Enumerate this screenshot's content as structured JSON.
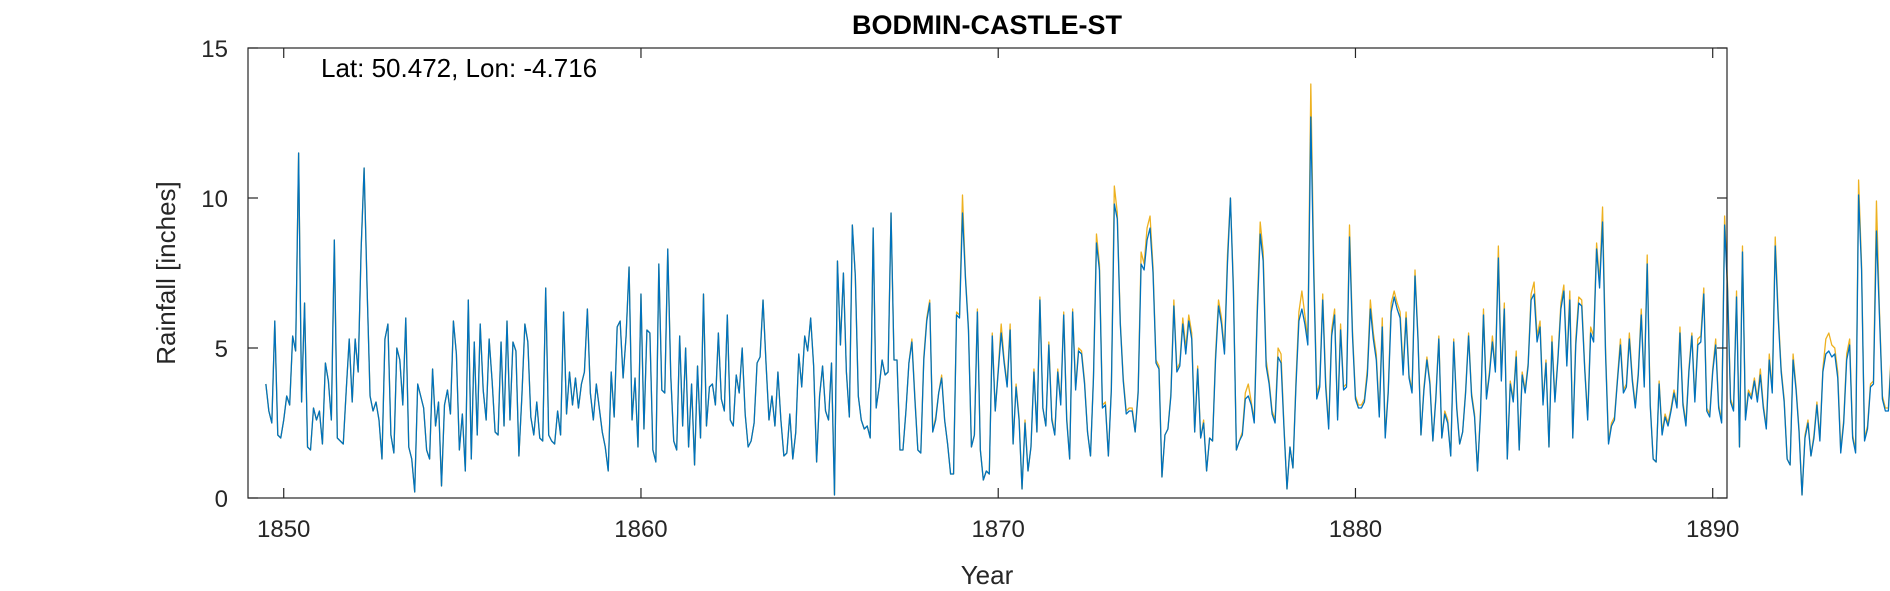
{
  "chart_data": {
    "type": "line",
    "title": "BODMIN-CASTLE-ST",
    "annotation": "Lat: 50.472, Lon: -4.716",
    "xlabel": "Year",
    "ylabel": "Rainfall [inches]",
    "xlim": [
      1849,
      1890.4
    ],
    "ylim": [
      0,
      15
    ],
    "xticks": [
      "1850",
      "1860",
      "1870",
      "1880",
      "1890"
    ],
    "yticks": [
      "0",
      "5",
      "10",
      "15"
    ],
    "grid": false,
    "colors": {
      "primary": "#0072BD",
      "secondary": "#EDB120"
    },
    "series": [
      {
        "key": "primary",
        "color": "#0072BD",
        "x_start": 1849.5,
        "x_step": 0.0833333,
        "values": [
          3.8,
          2.9,
          2.5,
          5.9,
          2.1,
          2.0,
          2.6,
          3.4,
          3.1,
          5.4,
          4.9,
          11.5,
          3.2,
          6.5,
          1.7,
          1.6,
          3.0,
          2.6,
          2.9,
          1.8,
          4.5,
          3.9,
          2.6,
          8.6,
          2.0,
          1.9,
          1.8,
          3.6,
          5.3,
          3.2,
          5.3,
          4.2,
          8.3,
          11.0,
          7.0,
          3.4,
          2.9,
          3.2,
          2.6,
          1.3,
          5.3,
          5.8,
          2.1,
          1.5,
          5.0,
          4.6,
          3.1,
          6.0,
          1.7,
          1.3,
          0.2,
          3.8,
          3.4,
          3.0,
          1.6,
          1.3,
          4.3,
          2.4,
          3.2,
          0.4,
          3.1,
          3.6,
          2.8,
          5.9,
          4.8,
          1.6,
          2.8,
          0.9,
          6.6,
          1.3,
          5.2,
          2.1,
          5.8,
          3.6,
          2.6,
          5.3,
          3.9,
          2.2,
          2.1,
          5.2,
          2.4,
          5.9,
          2.6,
          5.2,
          4.9,
          1.4,
          3.4,
          5.8,
          5.2,
          2.7,
          2.1,
          3.2,
          2.0,
          1.9,
          7.0,
          2.1,
          1.9,
          1.8,
          2.9,
          2.1,
          6.2,
          2.8,
          4.2,
          3.1,
          4.0,
          3.0,
          3.8,
          4.2,
          6.3,
          3.5,
          2.6,
          3.8,
          3.0,
          2.2,
          1.7,
          0.9,
          4.2,
          2.7,
          5.7,
          5.9,
          4.0,
          5.4,
          7.7,
          2.6,
          4.0,
          1.7,
          6.8,
          2.3,
          5.6,
          5.5,
          1.6,
          1.2,
          7.8,
          3.6,
          3.5,
          8.3,
          4.1,
          1.9,
          1.6,
          5.4,
          2.4,
          5.0,
          1.7,
          3.8,
          1.1,
          4.4,
          2.0,
          6.8,
          2.4,
          3.7,
          3.8,
          3.1,
          5.5,
          3.3,
          2.9,
          6.1,
          2.6,
          2.4,
          4.1,
          3.5,
          5.0,
          2.8,
          1.7,
          1.9,
          2.5,
          4.5,
          4.7,
          6.6,
          4.5,
          2.6,
          3.4,
          2.4,
          4.2,
          2.6,
          1.4,
          1.5,
          2.8,
          1.3,
          2.2,
          4.8,
          3.7,
          5.4,
          4.9,
          6.0,
          4.4,
          1.2,
          3.4,
          4.4,
          2.9,
          2.6,
          4.5,
          0.1,
          7.9,
          5.1,
          7.5,
          4.2,
          2.7,
          9.1,
          7.4,
          3.4,
          2.6,
          2.3,
          2.4,
          2.0,
          9.0,
          3.0,
          3.7,
          4.6,
          4.1,
          4.2,
          9.5,
          4.6,
          4.6,
          1.6,
          1.6,
          2.9,
          4.5,
          5.2,
          3.3,
          1.6,
          1.5,
          4.6,
          5.9,
          6.5,
          2.2,
          2.6,
          3.5,
          4.0,
          2.6,
          1.8,
          0.8,
          0.8,
          6.1,
          6.0,
          9.5,
          7.3,
          5.6,
          1.7,
          2.1,
          6.2,
          1.6,
          0.6,
          0.9,
          0.8,
          5.4,
          2.9,
          4.2,
          5.5,
          4.5,
          3.7,
          5.6,
          1.8,
          3.7,
          2.6,
          0.3,
          2.5,
          0.9,
          1.7,
          4.2,
          2.2,
          6.6,
          3.0,
          2.4,
          5.1,
          2.6,
          2.1,
          4.2,
          3.1,
          6.1,
          2.6,
          1.3,
          6.2,
          3.6,
          4.9,
          4.8,
          3.8,
          2.2,
          1.4,
          4.0,
          8.5,
          7.6,
          3.0,
          3.1,
          1.4,
          3.6,
          9.8,
          9.3,
          5.8,
          3.9,
          2.8,
          2.9,
          2.9,
          2.2,
          3.5,
          7.8,
          7.6,
          8.6,
          9.0,
          7.5,
          4.5,
          4.3,
          0.7,
          2.1,
          2.3,
          3.4,
          6.4,
          4.2,
          4.4,
          5.8,
          4.8,
          5.9,
          5.3,
          2.2,
          4.3,
          2.0,
          2.5,
          0.9,
          2.0,
          1.9,
          4.6,
          6.4,
          5.8,
          4.8,
          7.8,
          10.0,
          6.9,
          1.6,
          1.9,
          2.1,
          3.3,
          3.4,
          3.1,
          2.5,
          6.1,
          8.8,
          7.9,
          4.4,
          3.8,
          2.8,
          2.5,
          4.7,
          4.5,
          2.3,
          0.3,
          1.7,
          1.0,
          3.7,
          5.9,
          6.3,
          5.8,
          5.1,
          12.7,
          7.4,
          3.3,
          3.7,
          6.6,
          3.7,
          2.3,
          5.4,
          6.1,
          2.6,
          5.6,
          3.6,
          3.7,
          8.7,
          5.4,
          3.3,
          3.0,
          3.0,
          3.2,
          4.1,
          6.3,
          5.3,
          4.6,
          2.7,
          5.7,
          2.0,
          3.5,
          6.2,
          6.7,
          6.3,
          6.0,
          4.1,
          6.0,
          4.0,
          3.5,
          7.4,
          5.3,
          2.1,
          3.6,
          4.6,
          3.8,
          1.9,
          3.3,
          5.3,
          2.0,
          2.8,
          2.5,
          1.4,
          5.2,
          3.0,
          1.8,
          2.2,
          3.5,
          5.4,
          3.4,
          2.7,
          0.9,
          2.8,
          6.1,
          3.3,
          4.1,
          5.2,
          4.2,
          8.0,
          3.9,
          6.3,
          1.3,
          3.8,
          3.2,
          4.7,
          1.6,
          4.1,
          3.5,
          4.4,
          6.6,
          6.8,
          5.2,
          5.7,
          3.1,
          4.5,
          1.7,
          5.2,
          3.2,
          4.6,
          6.3,
          6.9,
          4.4,
          6.6,
          2.0,
          5.1,
          6.5,
          6.4,
          4.3,
          2.6,
          5.5,
          5.2,
          8.3,
          7.0,
          9.2,
          4.8,
          1.8,
          2.4,
          2.6,
          3.9,
          5.1,
          3.5,
          3.7,
          5.3,
          3.9,
          3.0,
          4.1,
          6.1,
          3.7,
          7.8,
          3.1,
          1.3,
          1.2,
          3.8,
          2.1,
          2.7,
          2.4,
          2.9,
          3.5,
          3.0,
          5.5,
          3.1,
          2.4,
          4.2,
          5.4,
          3.2,
          5.1,
          5.2,
          6.8,
          2.9,
          2.7,
          4.2,
          5.1,
          3.0,
          2.5,
          9.1,
          6.9,
          3.2,
          2.9,
          6.7,
          1.7,
          8.2,
          2.6,
          3.5,
          3.3,
          3.9,
          3.2,
          4.1,
          3.0,
          2.3,
          4.6,
          3.5,
          8.4,
          6.0,
          4.2,
          3.2,
          1.3,
          1.1,
          4.6,
          3.6,
          2.2,
          0.1,
          2.0,
          2.5,
          1.4,
          2.0,
          3.1,
          1.9,
          4.2,
          4.8,
          4.9,
          4.7,
          4.8,
          4.0,
          1.5,
          2.5,
          4.6,
          5.1,
          2.0,
          1.5,
          10.1,
          7.6,
          1.9,
          2.3,
          3.7,
          3.8,
          8.9,
          6.1,
          3.3,
          2.9,
          2.9,
          4.7,
          3.3,
          1.6,
          4.3,
          0.8,
          3.7
        ]
      },
      {
        "key": "secondary",
        "color": "#EDB120",
        "x_start": 1849.5,
        "x_step": 0.0833333,
        "values": [
          3.8,
          2.9,
          2.5,
          5.9,
          2.1,
          2.0,
          2.6,
          3.4,
          3.1,
          5.4,
          4.9,
          11.5,
          3.2,
          6.5,
          1.7,
          1.6,
          3.0,
          2.6,
          2.9,
          1.8,
          4.5,
          3.9,
          2.6,
          8.6,
          2.0,
          1.9,
          1.8,
          3.6,
          5.3,
          3.2,
          5.3,
          4.2,
          8.3,
          11.0,
          7.0,
          3.4,
          2.9,
          3.2,
          2.6,
          1.3,
          5.3,
          5.8,
          2.1,
          1.5,
          5.0,
          4.6,
          3.1,
          6.0,
          1.7,
          1.3,
          0.2,
          3.8,
          3.4,
          3.0,
          1.6,
          1.3,
          4.3,
          2.4,
          3.2,
          0.4,
          3.1,
          3.6,
          2.8,
          5.9,
          4.8,
          1.6,
          2.8,
          0.9,
          6.6,
          1.3,
          5.2,
          2.1,
          5.8,
          3.6,
          2.6,
          5.3,
          3.9,
          2.2,
          2.1,
          5.2,
          2.4,
          5.9,
          2.6,
          5.2,
          4.9,
          1.4,
          3.4,
          5.8,
          5.2,
          2.7,
          2.1,
          3.2,
          2.0,
          1.9,
          7.0,
          2.1,
          1.9,
          1.8,
          2.9,
          2.1,
          6.2,
          2.8,
          4.2,
          3.1,
          4.0,
          3.0,
          3.8,
          4.2,
          6.3,
          3.5,
          2.6,
          3.8,
          3.0,
          2.2,
          1.7,
          0.9,
          4.2,
          2.7,
          5.7,
          5.9,
          4.0,
          5.4,
          7.7,
          2.6,
          4.0,
          1.7,
          6.8,
          2.3,
          5.6,
          5.5,
          1.6,
          1.2,
          7.8,
          3.6,
          3.5,
          8.3,
          4.1,
          1.9,
          1.6,
          5.4,
          2.4,
          5.0,
          1.7,
          3.8,
          1.1,
          4.4,
          2.0,
          6.8,
          2.4,
          3.7,
          3.8,
          3.1,
          5.5,
          3.3,
          2.9,
          6.1,
          2.6,
          2.4,
          4.1,
          3.5,
          5.0,
          2.8,
          1.7,
          1.9,
          2.5,
          4.5,
          4.7,
          6.6,
          4.5,
          2.6,
          3.4,
          2.4,
          4.2,
          2.6,
          1.4,
          1.5,
          2.8,
          1.3,
          2.2,
          4.8,
          3.7,
          5.4,
          4.9,
          6.0,
          4.4,
          1.2,
          3.4,
          4.4,
          2.9,
          2.6,
          4.5,
          0.1,
          7.9,
          5.1,
          7.5,
          4.2,
          2.7,
          9.1,
          7.4,
          3.4,
          2.6,
          2.3,
          2.4,
          2.0,
          9.0,
          3.0,
          3.7,
          4.6,
          4.1,
          4.2,
          9.5,
          4.6,
          4.6,
          1.6,
          1.6,
          2.9,
          4.5,
          5.3,
          3.4,
          1.6,
          1.5,
          4.7,
          6.0,
          6.6,
          2.2,
          2.7,
          3.5,
          4.1,
          2.6,
          1.8,
          0.8,
          0.8,
          6.2,
          6.1,
          10.1,
          7.4,
          5.7,
          1.7,
          2.1,
          6.3,
          1.6,
          0.6,
          0.9,
          0.8,
          5.5,
          2.9,
          4.3,
          5.8,
          4.6,
          3.8,
          5.8,
          1.8,
          3.8,
          2.7,
          0.3,
          2.6,
          0.9,
          1.7,
          4.3,
          2.2,
          6.7,
          3.0,
          2.4,
          5.2,
          2.7,
          2.1,
          4.3,
          3.2,
          6.2,
          2.7,
          1.3,
          6.3,
          3.7,
          5.0,
          4.9,
          3.9,
          2.2,
          1.4,
          4.1,
          8.8,
          7.8,
          3.1,
          3.2,
          1.4,
          3.7,
          10.4,
          9.5,
          5.9,
          4.0,
          2.9,
          3.0,
          3.0,
          2.2,
          3.6,
          8.2,
          7.8,
          9.0,
          9.4,
          7.7,
          4.6,
          4.4,
          0.7,
          2.1,
          2.3,
          3.5,
          6.6,
          4.3,
          4.5,
          6.0,
          5.0,
          6.1,
          5.5,
          2.2,
          4.4,
          2.0,
          2.6,
          0.9,
          2.0,
          1.9,
          4.8,
          6.6,
          6.0,
          4.9,
          8.1,
          10.0,
          7.1,
          1.6,
          1.9,
          2.2,
          3.5,
          3.8,
          3.2,
          2.6,
          6.4,
          9.2,
          8.2,
          4.6,
          3.9,
          2.9,
          2.6,
          5.0,
          4.8,
          2.4,
          0.3,
          1.7,
          1.0,
          3.9,
          6.2,
          6.9,
          6.1,
          5.3,
          13.8,
          7.8,
          3.5,
          3.8,
          6.8,
          3.9,
          2.4,
          5.6,
          6.3,
          2.7,
          5.8,
          3.7,
          3.8,
          9.1,
          5.6,
          3.4,
          3.1,
          3.1,
          3.3,
          4.3,
          6.6,
          5.5,
          4.8,
          2.8,
          6.0,
          2.1,
          3.6,
          6.5,
          6.9,
          6.5,
          6.2,
          4.3,
          6.2,
          4.1,
          3.6,
          7.6,
          5.4,
          2.1,
          3.7,
          4.7,
          3.9,
          1.9,
          3.4,
          5.4,
          2.0,
          2.9,
          2.6,
          1.4,
          5.3,
          3.1,
          1.8,
          2.2,
          3.6,
          5.5,
          3.5,
          2.8,
          0.9,
          2.9,
          6.3,
          3.4,
          4.2,
          5.4,
          4.3,
          8.4,
          4.0,
          6.5,
          1.3,
          3.9,
          3.3,
          4.9,
          1.6,
          4.2,
          3.6,
          4.5,
          6.8,
          7.2,
          5.4,
          5.9,
          3.2,
          4.6,
          1.7,
          5.4,
          3.3,
          4.7,
          6.5,
          7.1,
          4.5,
          6.9,
          2.0,
          5.3,
          6.7,
          6.6,
          4.4,
          2.7,
          5.7,
          5.4,
          8.5,
          7.2,
          9.7,
          5.0,
          1.9,
          2.5,
          2.7,
          4.0,
          5.3,
          3.6,
          3.8,
          5.5,
          4.0,
          3.1,
          4.2,
          6.3,
          3.8,
          8.1,
          3.2,
          1.3,
          1.2,
          3.9,
          2.2,
          2.8,
          2.5,
          3.0,
          3.6,
          3.1,
          5.7,
          3.2,
          2.5,
          4.3,
          5.5,
          3.3,
          5.3,
          5.4,
          7.0,
          3.0,
          2.8,
          4.3,
          5.3,
          3.1,
          2.6,
          9.4,
          7.1,
          3.3,
          3.0,
          6.9,
          1.7,
          8.4,
          2.7,
          3.6,
          3.4,
          4.0,
          3.3,
          4.3,
          3.1,
          2.4,
          4.8,
          3.6,
          8.7,
          6.2,
          4.3,
          3.3,
          1.3,
          1.1,
          4.8,
          3.7,
          2.3,
          0.1,
          2.1,
          2.6,
          1.4,
          2.1,
          3.2,
          2.0,
          4.3,
          5.3,
          5.5,
          5.1,
          5.0,
          4.2,
          1.6,
          2.6,
          4.8,
          5.3,
          2.1,
          1.6,
          10.6,
          7.8,
          2.0,
          2.4,
          3.8,
          3.9,
          9.9,
          6.3,
          3.4,
          3.0,
          3.0,
          4.9,
          3.4,
          1.7,
          4.4,
          0.9,
          3.8
        ]
      }
    ]
  }
}
